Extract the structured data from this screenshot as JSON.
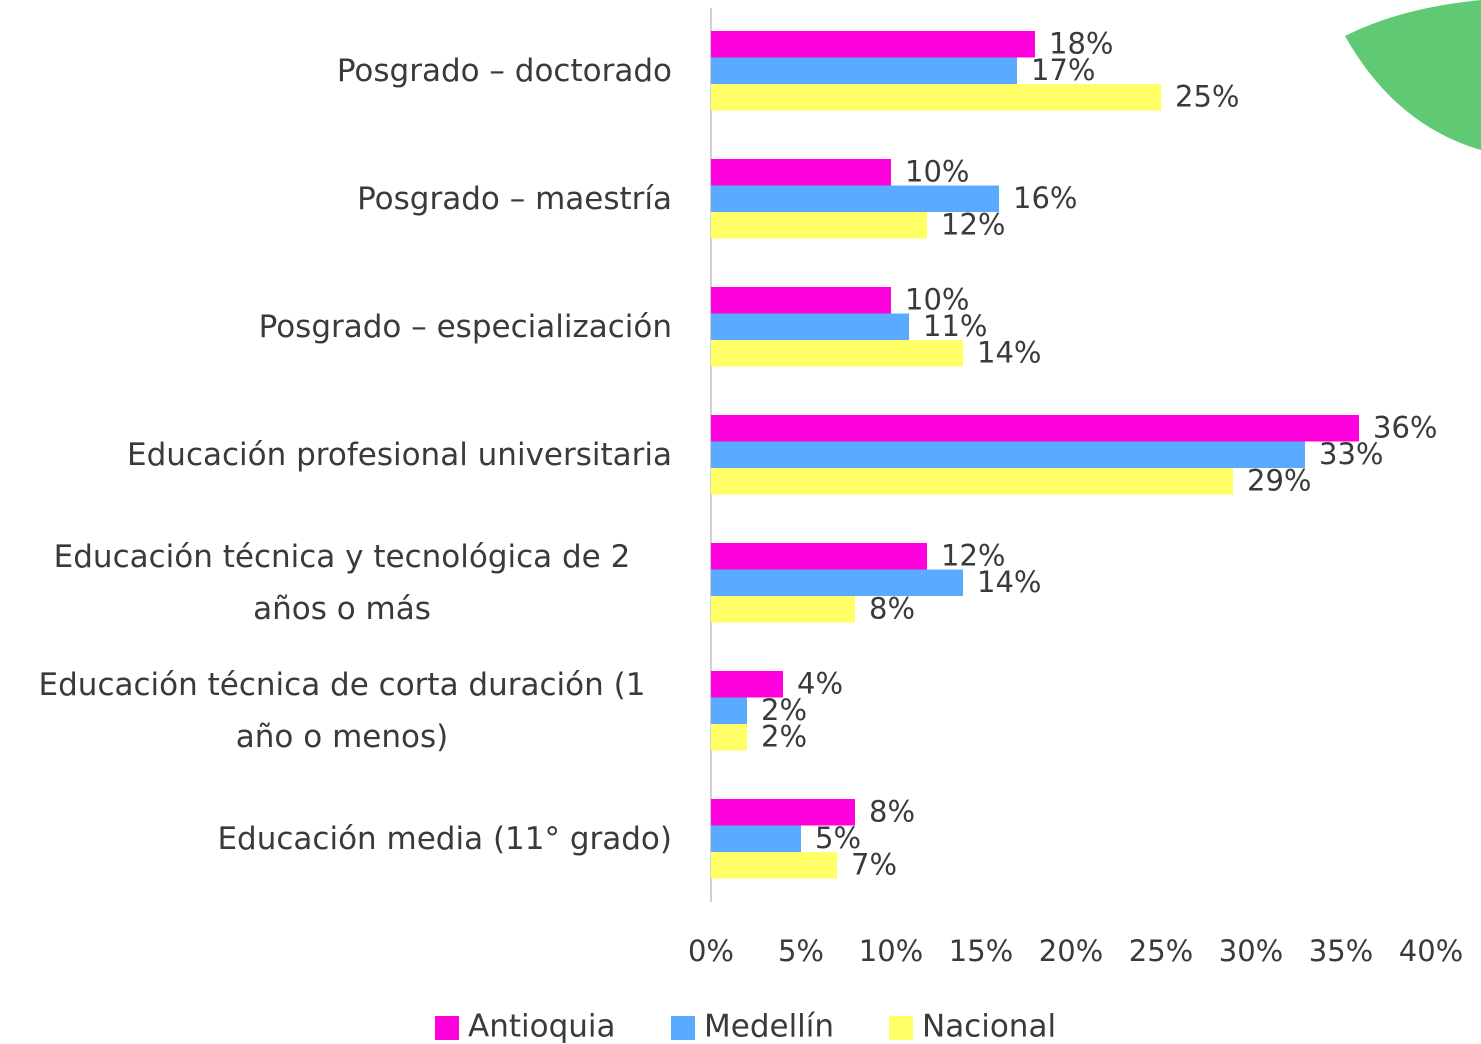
{
  "chart_data": {
    "type": "bar",
    "orientation": "horizontal",
    "categories": [
      "Posgrado – doctorado",
      "Posgrado – maestría",
      "Posgrado – especialización",
      "Educación profesional universitaria",
      "Educación técnica y tecnológica de 2 años o más",
      "Educación técnica de corta duración (1 año o menos)",
      "Educación media (11° grado)"
    ],
    "series": [
      {
        "name": "Antioquia",
        "color": "#ff00dd",
        "values": [
          18,
          10,
          10,
          36,
          12,
          4,
          8
        ],
        "value_labels": [
          "18%",
          "10%",
          "10%",
          "36%",
          "12%",
          "4%",
          "8%"
        ]
      },
      {
        "name": "Medellín",
        "color": "#5aabff",
        "values": [
          17,
          16,
          11,
          33,
          14,
          2,
          5
        ],
        "value_labels": [
          "17%",
          "16%",
          "11%",
          "33%",
          "14%",
          "2%",
          "5%"
        ]
      },
      {
        "name": "Nacional",
        "color": "#ffff66",
        "values": [
          25,
          12,
          14,
          29,
          8,
          2,
          7
        ],
        "value_labels": [
          "25%",
          "12%",
          "14%",
          "29%",
          "8%",
          "2%",
          "7%"
        ]
      }
    ],
    "xlim": [
      0,
      40
    ],
    "xticks": [
      {
        "value": 0,
        "label": "0%"
      },
      {
        "value": 5,
        "label": "5%"
      },
      {
        "value": 10,
        "label": "10%"
      },
      {
        "value": 15,
        "label": "15%"
      },
      {
        "value": 20,
        "label": "20%"
      },
      {
        "value": 25,
        "label": "25%"
      },
      {
        "value": 30,
        "label": "30%"
      },
      {
        "value": 35,
        "label": "35%"
      },
      {
        "value": 40,
        "label": "40%"
      }
    ],
    "legend": "bottom"
  }
}
